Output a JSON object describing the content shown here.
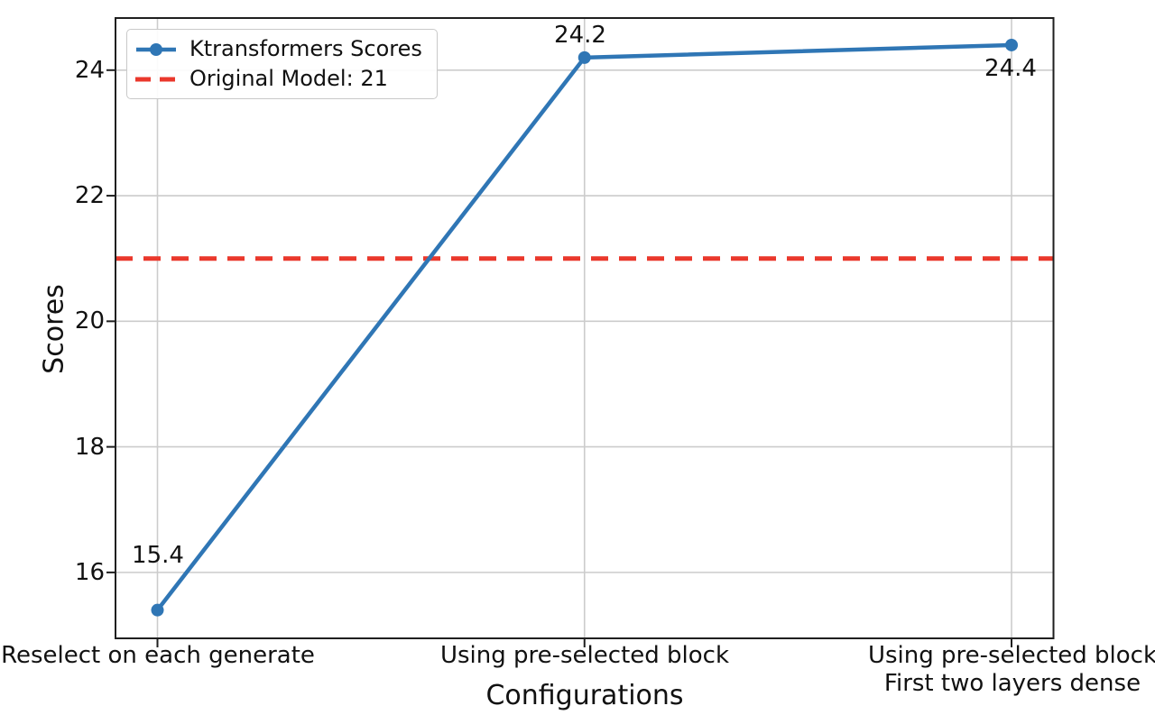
{
  "chart_data": {
    "type": "line",
    "xlabel": "Configurations",
    "ylabel": "Scores",
    "categories": [
      "Reselect on each generate",
      "Using pre-selected block",
      "Using pre-selected block\nFirst two layers dense"
    ],
    "series": [
      {
        "name": "Ktransformers Scores",
        "values": [
          15.4,
          24.2,
          24.4
        ],
        "color": "#2f76b5"
      }
    ],
    "baseline": {
      "label": "Original Model: 21",
      "value": 21,
      "color": "#ea382c",
      "style": "dashed"
    },
    "point_labels": [
      "15.4",
      "24.2",
      "24.4"
    ],
    "yticks": [
      16,
      18,
      20,
      22,
      24
    ],
    "ylim": [
      14.95,
      24.83
    ],
    "grid": true,
    "grid_color": "#cccccc",
    "spine_color": "#1f1f1f",
    "legend_position": "upper left",
    "legend": [
      "Ktransformers Scores",
      "Original Model: 21"
    ]
  }
}
